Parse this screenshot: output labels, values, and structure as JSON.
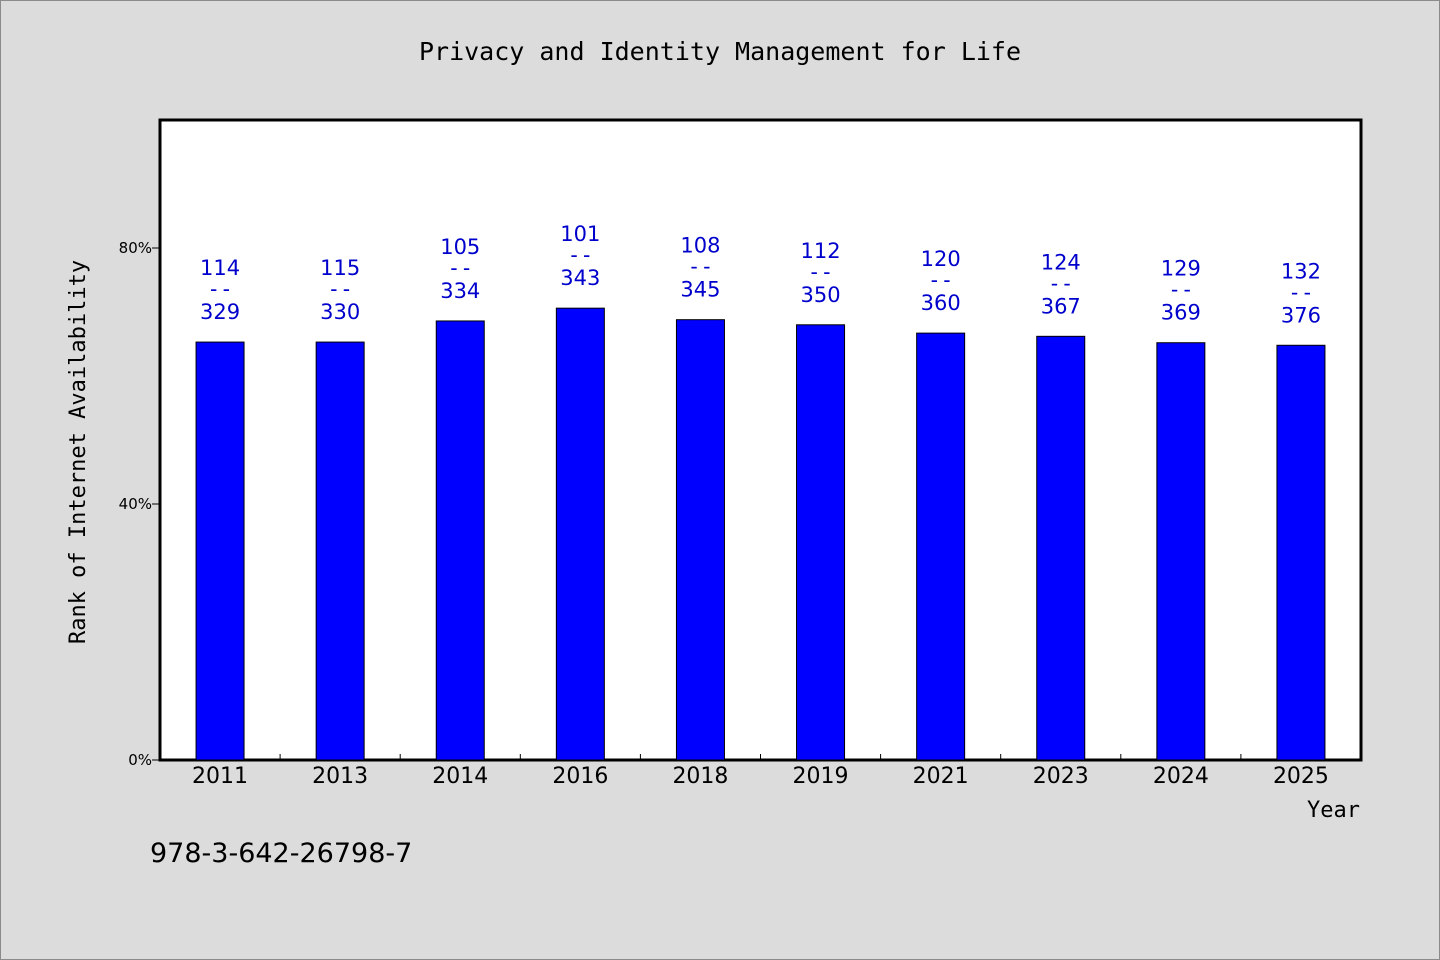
{
  "chart_data": {
    "type": "bar",
    "title": "Privacy and Identity Management for Life",
    "xlabel": "Year",
    "ylabel": "Rank of Internet Availability",
    "ylim": [
      0,
      100
    ],
    "yticks": [
      0,
      40,
      80
    ],
    "ytick_labels": [
      "0%",
      "40%",
      "80%"
    ],
    "categories": [
      "2011",
      "2013",
      "2014",
      "2016",
      "2018",
      "2019",
      "2021",
      "2023",
      "2024",
      "2025"
    ],
    "values": [
      65.3,
      65.3,
      68.6,
      70.6,
      68.8,
      68.0,
      66.7,
      66.2,
      65.2,
      64.8
    ],
    "bar_labels": [
      {
        "top": "114",
        "sep": "--",
        "bottom": "329"
      },
      {
        "top": "115",
        "sep": "--",
        "bottom": "330"
      },
      {
        "top": "105",
        "sep": "--",
        "bottom": "334"
      },
      {
        "top": "101",
        "sep": "--",
        "bottom": "343"
      },
      {
        "top": "108",
        "sep": "--",
        "bottom": "345"
      },
      {
        "top": "112",
        "sep": "--",
        "bottom": "350"
      },
      {
        "top": "120",
        "sep": "--",
        "bottom": "360"
      },
      {
        "top": "124",
        "sep": "--",
        "bottom": "367"
      },
      {
        "top": "129",
        "sep": "--",
        "bottom": "369"
      },
      {
        "top": "132",
        "sep": "--",
        "bottom": "376"
      }
    ],
    "bar_color": "#0000ff",
    "label_color": "#0000cc",
    "grid": false,
    "legend": "none"
  },
  "footer": {
    "isbn": "978-3-642-26798-7"
  }
}
